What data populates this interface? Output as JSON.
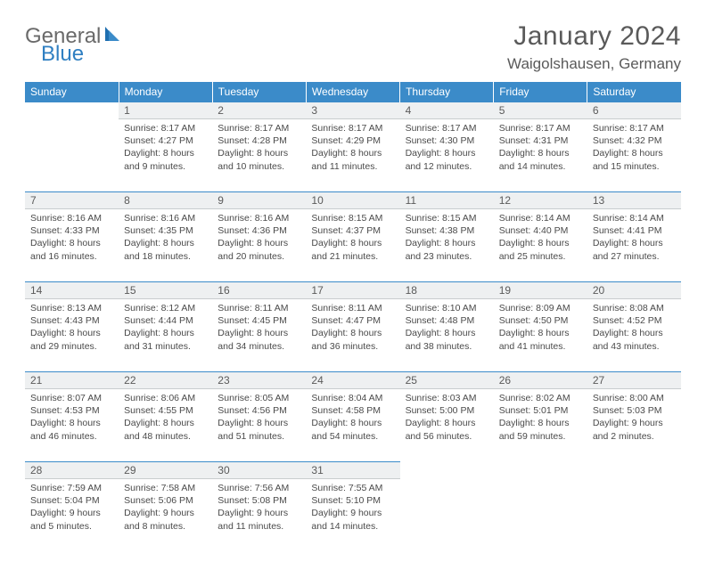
{
  "logo": {
    "text1": "General",
    "text2": "Blue"
  },
  "title": "January 2024",
  "location": "Waigolshausen, Germany",
  "colors": {
    "header_bg": "#3b8bc9",
    "header_text": "#ffffff",
    "daynum_bg": "#eef0f1",
    "rule": "#3b8bc9",
    "text": "#4a4a4a",
    "logo_gray": "#6a6a6a",
    "logo_blue": "#2f7fc2"
  },
  "weekdays": [
    "Sunday",
    "Monday",
    "Tuesday",
    "Wednesday",
    "Thursday",
    "Friday",
    "Saturday"
  ],
  "weeks": [
    [
      null,
      {
        "n": "1",
        "rise": "Sunrise: 8:17 AM",
        "set": "Sunset: 4:27 PM",
        "dl1": "Daylight: 8 hours",
        "dl2": "and 9 minutes."
      },
      {
        "n": "2",
        "rise": "Sunrise: 8:17 AM",
        "set": "Sunset: 4:28 PM",
        "dl1": "Daylight: 8 hours",
        "dl2": "and 10 minutes."
      },
      {
        "n": "3",
        "rise": "Sunrise: 8:17 AM",
        "set": "Sunset: 4:29 PM",
        "dl1": "Daylight: 8 hours",
        "dl2": "and 11 minutes."
      },
      {
        "n": "4",
        "rise": "Sunrise: 8:17 AM",
        "set": "Sunset: 4:30 PM",
        "dl1": "Daylight: 8 hours",
        "dl2": "and 12 minutes."
      },
      {
        "n": "5",
        "rise": "Sunrise: 8:17 AM",
        "set": "Sunset: 4:31 PM",
        "dl1": "Daylight: 8 hours",
        "dl2": "and 14 minutes."
      },
      {
        "n": "6",
        "rise": "Sunrise: 8:17 AM",
        "set": "Sunset: 4:32 PM",
        "dl1": "Daylight: 8 hours",
        "dl2": "and 15 minutes."
      }
    ],
    [
      {
        "n": "7",
        "rise": "Sunrise: 8:16 AM",
        "set": "Sunset: 4:33 PM",
        "dl1": "Daylight: 8 hours",
        "dl2": "and 16 minutes."
      },
      {
        "n": "8",
        "rise": "Sunrise: 8:16 AM",
        "set": "Sunset: 4:35 PM",
        "dl1": "Daylight: 8 hours",
        "dl2": "and 18 minutes."
      },
      {
        "n": "9",
        "rise": "Sunrise: 8:16 AM",
        "set": "Sunset: 4:36 PM",
        "dl1": "Daylight: 8 hours",
        "dl2": "and 20 minutes."
      },
      {
        "n": "10",
        "rise": "Sunrise: 8:15 AM",
        "set": "Sunset: 4:37 PM",
        "dl1": "Daylight: 8 hours",
        "dl2": "and 21 minutes."
      },
      {
        "n": "11",
        "rise": "Sunrise: 8:15 AM",
        "set": "Sunset: 4:38 PM",
        "dl1": "Daylight: 8 hours",
        "dl2": "and 23 minutes."
      },
      {
        "n": "12",
        "rise": "Sunrise: 8:14 AM",
        "set": "Sunset: 4:40 PM",
        "dl1": "Daylight: 8 hours",
        "dl2": "and 25 minutes."
      },
      {
        "n": "13",
        "rise": "Sunrise: 8:14 AM",
        "set": "Sunset: 4:41 PM",
        "dl1": "Daylight: 8 hours",
        "dl2": "and 27 minutes."
      }
    ],
    [
      {
        "n": "14",
        "rise": "Sunrise: 8:13 AM",
        "set": "Sunset: 4:43 PM",
        "dl1": "Daylight: 8 hours",
        "dl2": "and 29 minutes."
      },
      {
        "n": "15",
        "rise": "Sunrise: 8:12 AM",
        "set": "Sunset: 4:44 PM",
        "dl1": "Daylight: 8 hours",
        "dl2": "and 31 minutes."
      },
      {
        "n": "16",
        "rise": "Sunrise: 8:11 AM",
        "set": "Sunset: 4:45 PM",
        "dl1": "Daylight: 8 hours",
        "dl2": "and 34 minutes."
      },
      {
        "n": "17",
        "rise": "Sunrise: 8:11 AM",
        "set": "Sunset: 4:47 PM",
        "dl1": "Daylight: 8 hours",
        "dl2": "and 36 minutes."
      },
      {
        "n": "18",
        "rise": "Sunrise: 8:10 AM",
        "set": "Sunset: 4:48 PM",
        "dl1": "Daylight: 8 hours",
        "dl2": "and 38 minutes."
      },
      {
        "n": "19",
        "rise": "Sunrise: 8:09 AM",
        "set": "Sunset: 4:50 PM",
        "dl1": "Daylight: 8 hours",
        "dl2": "and 41 minutes."
      },
      {
        "n": "20",
        "rise": "Sunrise: 8:08 AM",
        "set": "Sunset: 4:52 PM",
        "dl1": "Daylight: 8 hours",
        "dl2": "and 43 minutes."
      }
    ],
    [
      {
        "n": "21",
        "rise": "Sunrise: 8:07 AM",
        "set": "Sunset: 4:53 PM",
        "dl1": "Daylight: 8 hours",
        "dl2": "and 46 minutes."
      },
      {
        "n": "22",
        "rise": "Sunrise: 8:06 AM",
        "set": "Sunset: 4:55 PM",
        "dl1": "Daylight: 8 hours",
        "dl2": "and 48 minutes."
      },
      {
        "n": "23",
        "rise": "Sunrise: 8:05 AM",
        "set": "Sunset: 4:56 PM",
        "dl1": "Daylight: 8 hours",
        "dl2": "and 51 minutes."
      },
      {
        "n": "24",
        "rise": "Sunrise: 8:04 AM",
        "set": "Sunset: 4:58 PM",
        "dl1": "Daylight: 8 hours",
        "dl2": "and 54 minutes."
      },
      {
        "n": "25",
        "rise": "Sunrise: 8:03 AM",
        "set": "Sunset: 5:00 PM",
        "dl1": "Daylight: 8 hours",
        "dl2": "and 56 minutes."
      },
      {
        "n": "26",
        "rise": "Sunrise: 8:02 AM",
        "set": "Sunset: 5:01 PM",
        "dl1": "Daylight: 8 hours",
        "dl2": "and 59 minutes."
      },
      {
        "n": "27",
        "rise": "Sunrise: 8:00 AM",
        "set": "Sunset: 5:03 PM",
        "dl1": "Daylight: 9 hours",
        "dl2": "and 2 minutes."
      }
    ],
    [
      {
        "n": "28",
        "rise": "Sunrise: 7:59 AM",
        "set": "Sunset: 5:04 PM",
        "dl1": "Daylight: 9 hours",
        "dl2": "and 5 minutes."
      },
      {
        "n": "29",
        "rise": "Sunrise: 7:58 AM",
        "set": "Sunset: 5:06 PM",
        "dl1": "Daylight: 9 hours",
        "dl2": "and 8 minutes."
      },
      {
        "n": "30",
        "rise": "Sunrise: 7:56 AM",
        "set": "Sunset: 5:08 PM",
        "dl1": "Daylight: 9 hours",
        "dl2": "and 11 minutes."
      },
      {
        "n": "31",
        "rise": "Sunrise: 7:55 AM",
        "set": "Sunset: 5:10 PM",
        "dl1": "Daylight: 9 hours",
        "dl2": "and 14 minutes."
      },
      null,
      null,
      null
    ]
  ]
}
